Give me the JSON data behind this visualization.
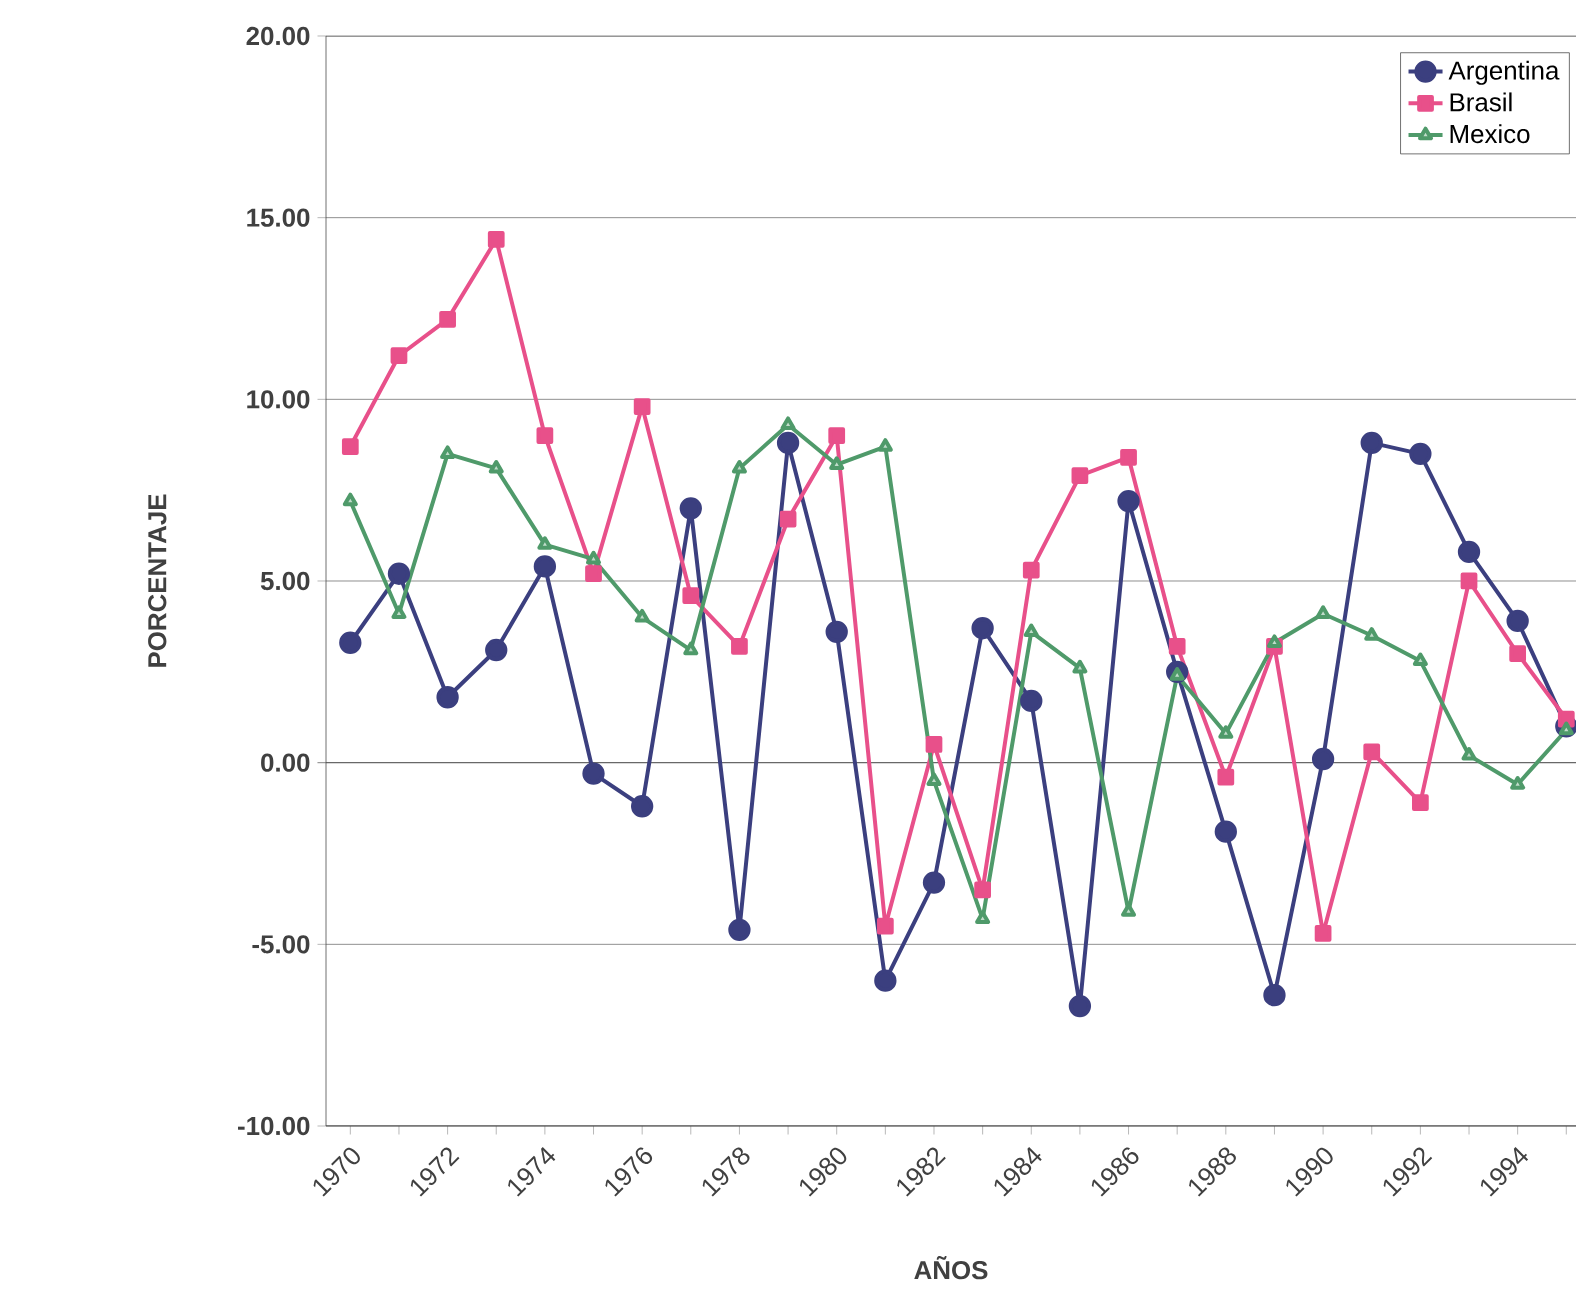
{
  "chart_data": {
    "type": "line",
    "xlabel": "AÑOS",
    "ylabel": "PORCENTAJE",
    "categories": [
      "1970",
      null,
      "1972",
      null,
      "1974",
      null,
      "1976",
      null,
      "1978",
      null,
      "1980",
      null,
      "1982",
      null,
      "1984",
      null,
      "1986",
      null,
      "1988",
      null,
      "1990",
      null,
      "1992",
      null,
      "1994",
      null
    ],
    "series": [
      {
        "name": "Argentina",
        "color": "#3b3f7f",
        "marker": "circle",
        "values": [
          3.3,
          5.2,
          1.8,
          3.1,
          5.4,
          -0.3,
          -1.2,
          7.0,
          -4.6,
          8.8,
          3.6,
          -6.0,
          -3.3,
          3.7,
          1.7,
          -6.7,
          7.2,
          2.5,
          -1.9,
          -6.4,
          0.1,
          8.8,
          8.5,
          5.8,
          3.9,
          1.0
        ]
      },
      {
        "name": "Brasil",
        "color": "#e8508a",
        "marker": "square",
        "values": [
          8.7,
          11.2,
          12.2,
          14.4,
          9.0,
          5.2,
          9.8,
          4.6,
          3.2,
          6.7,
          9.0,
          -4.5,
          0.5,
          -3.5,
          5.3,
          7.9,
          8.4,
          3.2,
          -0.4,
          3.2,
          -4.7,
          0.3,
          -1.1,
          5.0,
          3.0,
          1.2
        ]
      },
      {
        "name": "Mexico",
        "color": "#4f9a6a",
        "marker": "triangle",
        "values": [
          7.2,
          4.1,
          8.5,
          8.1,
          6.0,
          5.6,
          4.0,
          3.1,
          8.1,
          9.3,
          8.2,
          8.7,
          -0.5,
          -4.3,
          3.6,
          2.6,
          -4.1,
          2.4,
          0.8,
          3.3,
          4.1,
          3.5,
          2.8,
          0.2,
          -0.6,
          0.9
        ]
      }
    ],
    "ylim": [
      -10,
      20
    ],
    "yticks": [
      {
        "value": -10,
        "label": "-10.00"
      },
      {
        "value": -5,
        "label": "-5.00"
      },
      {
        "value": 0,
        "label": "0.00"
      },
      {
        "value": 5,
        "label": "5.00"
      },
      {
        "value": 10,
        "label": "10.00"
      },
      {
        "value": 15,
        "label": "15.00"
      },
      {
        "value": 20,
        "label": "20.00"
      }
    ],
    "grid": "y",
    "legend": "top right",
    "line_style": "solid"
  }
}
